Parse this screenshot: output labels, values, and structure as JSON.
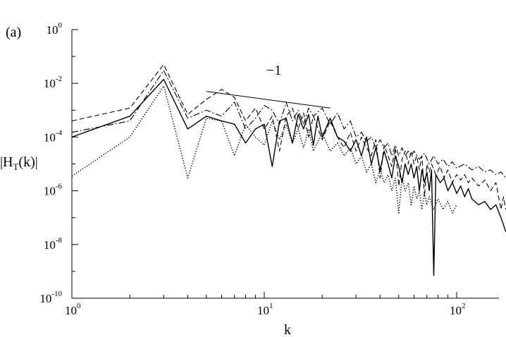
{
  "panel_label": "(a)",
  "chart_data": {
    "type": "line",
    "xlabel": "k",
    "ylabel": {
      "main": "|H",
      "sub": "T",
      "tail": "(k)|"
    },
    "x_scale": "log",
    "y_scale": "log",
    "xlim": [
      1,
      180
    ],
    "ylim": [
      1e-10,
      1
    ],
    "x_ticks": [
      {
        "value": 1,
        "base": "10",
        "exp": "0"
      },
      {
        "value": 10,
        "base": "10",
        "exp": "1"
      },
      {
        "value": 100,
        "base": "10",
        "exp": "2"
      }
    ],
    "y_ticks": [
      {
        "value": 1,
        "base": "10",
        "exp": "0"
      },
      {
        "value": 0.01,
        "base": "10",
        "exp": "-2"
      },
      {
        "value": 0.0001,
        "base": "10",
        "exp": "-4"
      },
      {
        "value": 1e-06,
        "base": "10",
        "exp": "-6"
      },
      {
        "value": 1e-08,
        "base": "10",
        "exp": "-8"
      },
      {
        "value": 1e-10,
        "base": "10",
        "exp": "-10"
      }
    ],
    "slope_annotation": {
      "label": "−1",
      "x": [
        5,
        22
      ],
      "y": [
        0.005,
        0.0012
      ]
    },
    "series": [
      {
        "style": "solid",
        "points": [
          [
            1,
            0.0001
          ],
          [
            2,
            0.0006
          ],
          [
            3,
            0.014
          ],
          [
            4,
            0.0002
          ],
          [
            5,
            0.0006
          ],
          [
            6,
            0.0004
          ],
          [
            7,
            0.0003
          ],
          [
            8,
            6e-05
          ],
          [
            9,
            0.0002
          ],
          [
            10,
            0.0003
          ],
          [
            11,
            8e-06
          ],
          [
            12,
            0.0004
          ],
          [
            13,
            0.0005
          ],
          [
            14,
            6e-05
          ],
          [
            15,
            0.0007
          ],
          [
            16,
            0.0002
          ],
          [
            17,
            0.0007
          ],
          [
            18,
            5e-05
          ],
          [
            19,
            0.0006
          ],
          [
            20,
            0.0001
          ],
          [
            22,
            0.0005
          ],
          [
            24,
            0.0001
          ],
          [
            26,
            7e-05
          ],
          [
            28,
            3e-05
          ],
          [
            30,
            8e-05
          ],
          [
            32,
            2e-05
          ],
          [
            34,
            0.0001
          ],
          [
            36,
            1e-05
          ],
          [
            38,
            4e-05
          ],
          [
            40,
            6e-06
          ],
          [
            42,
            3e-05
          ],
          [
            44,
            1e-05
          ],
          [
            46,
            3e-06
          ],
          [
            48,
            2e-05
          ],
          [
            50,
            8e-06
          ],
          [
            52,
            2e-06
          ],
          [
            54,
            1e-05
          ],
          [
            56,
            4e-06
          ],
          [
            58,
            1e-05
          ],
          [
            60,
            3e-06
          ],
          [
            62,
            8e-06
          ],
          [
            64,
            1e-06
          ],
          [
            66,
            6e-06
          ],
          [
            68,
            2e-06
          ],
          [
            70,
            5e-06
          ],
          [
            72,
            1e-06
          ],
          [
            74,
            6e-06
          ],
          [
            76,
            7e-10
          ],
          [
            78,
            4e-06
          ],
          [
            82,
            2e-06
          ],
          [
            86,
            3e-06
          ],
          [
            90,
            1e-06
          ],
          [
            95,
            2e-06
          ],
          [
            100,
            8e-07
          ],
          [
            105,
            1.5e-06
          ],
          [
            110,
            6e-07
          ],
          [
            115,
            1.2e-06
          ],
          [
            120,
            5e-07
          ],
          [
            130,
            3e-07
          ],
          [
            140,
            4e-07
          ],
          [
            150,
            2e-07
          ],
          [
            160,
            3e-07
          ],
          [
            170,
            1e-07
          ],
          [
            180,
            3e-08
          ]
        ]
      },
      {
        "style": "dashed",
        "points": [
          [
            1,
            0.0004
          ],
          [
            2,
            0.0012
          ],
          [
            3,
            0.05
          ],
          [
            4,
            0.0007
          ],
          [
            5,
            0.0025
          ],
          [
            6,
            0.006
          ],
          [
            7,
            0.003
          ],
          [
            8,
            0.0004
          ],
          [
            9,
            0.0012
          ],
          [
            10,
            0.0002
          ],
          [
            11,
            0.0006
          ],
          [
            12,
            3e-05
          ],
          [
            13,
            0.0006
          ],
          [
            14,
            0.0012
          ],
          [
            15,
            0.0002
          ],
          [
            16,
            0.0008
          ],
          [
            17,
            0.0001
          ],
          [
            18,
            0.0006
          ],
          [
            20,
            8e-05
          ],
          [
            22,
            0.0004
          ],
          [
            24,
            0.0001
          ],
          [
            26,
            4e-05
          ],
          [
            28,
            0.00015
          ],
          [
            30,
            3e-05
          ],
          [
            32,
            0.0001
          ],
          [
            34,
            4e-05
          ],
          [
            36,
            2e-05
          ],
          [
            38,
            8e-05
          ],
          [
            40,
            3e-06
          ],
          [
            42,
            5e-05
          ],
          [
            44,
            2e-05
          ],
          [
            46,
            8e-06
          ],
          [
            48,
            4e-05
          ],
          [
            50,
            1.5e-06
          ],
          [
            52,
            1.5e-05
          ],
          [
            54,
            3e-05
          ],
          [
            56,
            1e-05
          ],
          [
            58,
            3e-05
          ],
          [
            60,
            1e-05
          ],
          [
            62,
            2e-05
          ],
          [
            64,
            6e-06
          ],
          [
            66,
            2e-05
          ],
          [
            68,
            6e-07
          ],
          [
            70,
            1e-05
          ],
          [
            72,
            5e-06
          ],
          [
            74,
            1e-05
          ],
          [
            78,
            4e-06
          ],
          [
            82,
            8e-06
          ],
          [
            86,
            3e-06
          ],
          [
            90,
            6e-06
          ],
          [
            95,
            2e-06
          ],
          [
            100,
            4e-06
          ],
          [
            105,
            2.5e-06
          ],
          [
            110,
            4e-06
          ],
          [
            115,
            2e-06
          ],
          [
            120,
            3e-06
          ],
          [
            130,
            1.5e-06
          ],
          [
            140,
            2.5e-06
          ],
          [
            150,
            1e-06
          ],
          [
            160,
            2e-06
          ],
          [
            170,
            2e-07
          ],
          [
            175,
            6e-07
          ],
          [
            180,
            2e-07
          ]
        ]
      },
      {
        "style": "dashdot",
        "points": [
          [
            1,
            0.00015
          ],
          [
            2,
            0.0004
          ],
          [
            3,
            0.03
          ],
          [
            4,
            0.0005
          ],
          [
            5,
            0.001
          ],
          [
            6,
            0.0006
          ],
          [
            7,
            0.002
          ],
          [
            8,
            0.0002
          ],
          [
            9,
            0.0005
          ],
          [
            10,
            0.0015
          ],
          [
            11,
            0.001
          ],
          [
            12,
            0.0003
          ],
          [
            13,
            0.002
          ],
          [
            14,
            0.0004
          ],
          [
            15,
            0.001
          ],
          [
            16,
            0.0003
          ],
          [
            17,
            0.0012
          ],
          [
            18,
            0.0006
          ],
          [
            20,
            0.0012
          ],
          [
            22,
            0.0003
          ],
          [
            24,
            0.0008
          ],
          [
            26,
            0.0002
          ],
          [
            28,
            0.0004
          ],
          [
            30,
            0.0001
          ],
          [
            32,
            0.00015
          ],
          [
            34,
            7e-05
          ],
          [
            36,
            0.0001
          ],
          [
            38,
            4e-05
          ],
          [
            40,
            8e-05
          ],
          [
            42,
            4e-05
          ],
          [
            44,
            6e-05
          ],
          [
            46,
            2e-05
          ],
          [
            48,
            5e-05
          ],
          [
            50,
            2e-05
          ],
          [
            52,
            4e-05
          ],
          [
            54,
            2e-05
          ],
          [
            56,
            3e-05
          ],
          [
            58,
            2e-05
          ],
          [
            60,
            3e-05
          ],
          [
            64,
            1.5e-05
          ],
          [
            68,
            2.5e-05
          ],
          [
            72,
            1e-05
          ],
          [
            76,
            2e-05
          ],
          [
            80,
            1e-05
          ],
          [
            85,
            1.5e-05
          ],
          [
            90,
            8e-06
          ],
          [
            95,
            1.2e-05
          ],
          [
            100,
            7e-06
          ],
          [
            110,
            1e-05
          ],
          [
            120,
            6e-06
          ],
          [
            130,
            8e-06
          ],
          [
            140,
            5e-06
          ],
          [
            150,
            6e-06
          ],
          [
            160,
            4e-06
          ],
          [
            170,
            5e-06
          ],
          [
            180,
            3e-06
          ]
        ]
      },
      {
        "style": "dotted",
        "points": [
          [
            1,
            3.5e-06
          ],
          [
            2,
            0.0001
          ],
          [
            3,
            0.008
          ],
          [
            4,
            3e-06
          ],
          [
            5,
            0.0005
          ],
          [
            6,
            0.0004
          ],
          [
            7,
            2e-05
          ],
          [
            8,
            0.0003
          ],
          [
            9,
            0.0001
          ],
          [
            10,
            5e-05
          ],
          [
            11,
            0.0004
          ],
          [
            12,
            8e-05
          ],
          [
            13,
            0.0003
          ],
          [
            14,
            6e-05
          ],
          [
            15,
            0.0002
          ],
          [
            16,
            4e-05
          ],
          [
            17,
            0.0002
          ],
          [
            18,
            3e-05
          ],
          [
            20,
            0.00015
          ],
          [
            22,
            3e-05
          ],
          [
            24,
            6e-05
          ],
          [
            26,
            2e-05
          ],
          [
            28,
            4e-05
          ],
          [
            30,
            1e-05
          ],
          [
            32,
            2e-05
          ],
          [
            34,
            5e-06
          ],
          [
            36,
            1e-05
          ],
          [
            38,
            2e-06
          ],
          [
            40,
            6e-06
          ],
          [
            42,
            2e-06
          ],
          [
            44,
            4e-06
          ],
          [
            46,
            1e-06
          ],
          [
            48,
            3e-06
          ],
          [
            50,
            1.5e-07
          ],
          [
            52,
            3e-06
          ],
          [
            54,
            1e-06
          ],
          [
            56,
            2e-06
          ],
          [
            58,
            3e-07
          ],
          [
            60,
            1.5e-06
          ],
          [
            62,
            5e-07
          ],
          [
            64,
            1e-06
          ],
          [
            66,
            2e-07
          ],
          [
            68,
            8e-07
          ],
          [
            70,
            3e-07
          ],
          [
            72,
            6e-07
          ],
          [
            76,
            2e-07
          ],
          [
            80,
            5e-07
          ],
          [
            85,
            2e-07
          ],
          [
            90,
            4e-07
          ],
          [
            95,
            1.5e-07
          ],
          [
            100,
            3e-07
          ]
        ]
      }
    ]
  }
}
